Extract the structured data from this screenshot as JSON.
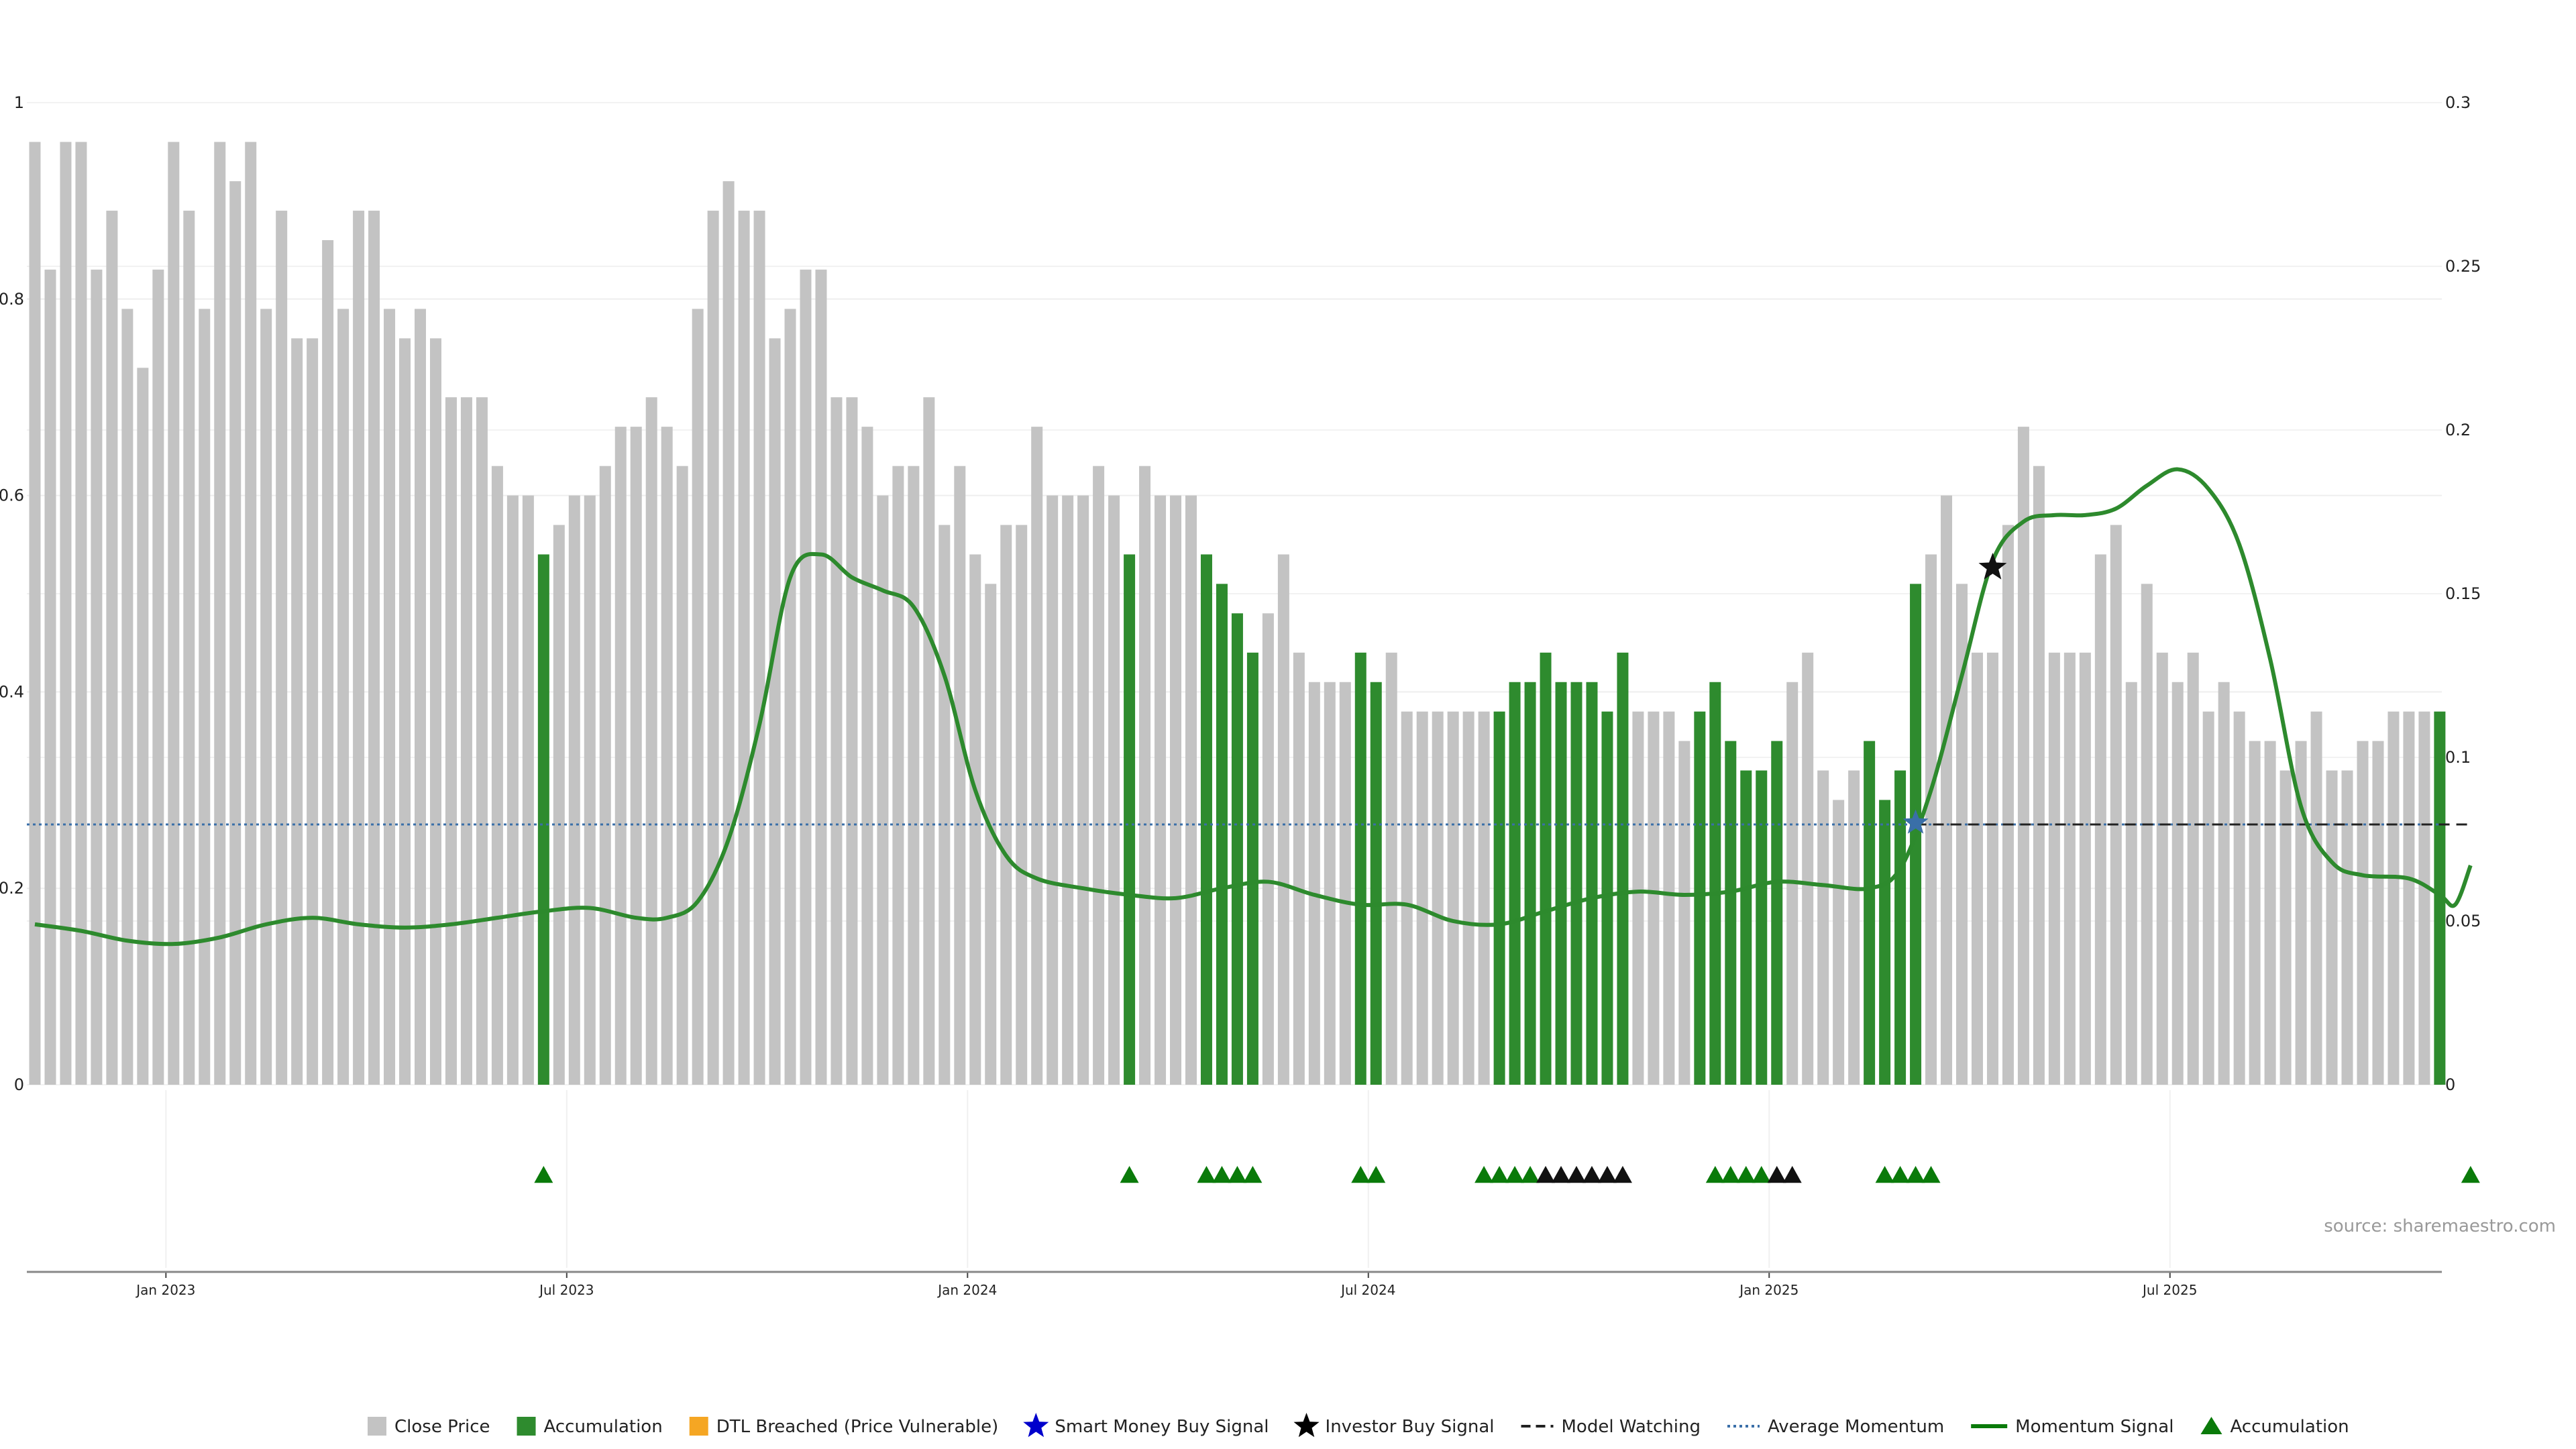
{
  "chart_data": {
    "type": "bar",
    "left_axis": {
      "ylim": [
        0,
        1
      ],
      "ticks": [
        "0",
        "0.2",
        "0.4",
        "0.6",
        "0.8",
        "1"
      ]
    },
    "right_axis": {
      "ylim": [
        0,
        0.3
      ],
      "ticks": [
        "0",
        "0.05",
        "0.1",
        "0.15",
        "0.2",
        "0.25",
        "0.3"
      ]
    },
    "x_tick_labels": [
      "Jan 2023",
      "Jul 2023",
      "Jan 2024",
      "Jul 2024",
      "Jan 2025",
      "Jul 2025"
    ],
    "grid": true,
    "source": "source: sharemaestro.com",
    "legend": {
      "position": "bottom-center",
      "items": [
        {
          "label": "Close Price",
          "marker": "square",
          "color": "#c3c3c3"
        },
        {
          "label": "Accumulation",
          "marker": "square",
          "color": "#2e8b2e"
        },
        {
          "label": "DTL Breached (Price Vulnerable)",
          "marker": "square",
          "color": "#f5a623"
        },
        {
          "label": "Smart Money Buy Signal",
          "marker": "star",
          "color": "#0000cc"
        },
        {
          "label": "Investor Buy Signal",
          "marker": "star",
          "color": "#000000"
        },
        {
          "label": "Model Watching",
          "marker": "dash",
          "color": "#222222"
        },
        {
          "label": "Average Momentum",
          "marker": "dotted",
          "color": "#3a6fa8"
        },
        {
          "label": "Momentum Signal",
          "marker": "line",
          "color": "#0a7a0a"
        },
        {
          "label": "Accumulation",
          "marker": "triangle",
          "color": "#0a7a0a"
        }
      ]
    },
    "colors": {
      "close_price": "#c3c3c3",
      "accumulation": "#2e8b2e",
      "momentum": "#2d8a2d",
      "momentum_recent": "#0a7a0a",
      "average_momentum": "#3a6fa8",
      "model_watching": "#222222"
    },
    "bars": {
      "values": [
        0.96,
        0.83,
        0.96,
        0.96,
        0.83,
        0.89,
        0.79,
        0.73,
        0.83,
        0.96,
        0.89,
        0.79,
        0.96,
        0.92,
        0.96,
        0.79,
        0.89,
        0.76,
        0.76,
        0.86,
        0.79,
        0.89,
        0.89,
        0.79,
        0.76,
        0.79,
        0.76,
        0.7,
        0.7,
        0.7,
        0.63,
        0.6,
        0.6,
        0.54,
        0.57,
        0.6,
        0.6,
        0.63,
        0.67,
        0.67,
        0.7,
        0.67,
        0.63,
        0.79,
        0.89,
        0.92,
        0.89,
        0.89,
        0.76,
        0.79,
        0.83,
        0.83,
        0.7,
        0.7,
        0.67,
        0.6,
        0.63,
        0.63,
        0.7,
        0.57,
        0.63,
        0.54,
        0.51,
        0.57,
        0.57,
        0.67,
        0.6,
        0.6,
        0.6,
        0.63,
        0.6,
        0.54,
        0.63,
        0.6,
        0.6,
        0.6,
        0.54,
        0.51,
        0.48,
        0.44,
        0.48,
        0.54,
        0.44,
        0.41,
        0.41,
        0.41,
        0.44,
        0.41,
        0.44,
        0.38,
        0.38,
        0.38,
        0.38,
        0.38,
        0.38,
        0.38,
        0.41,
        0.41,
        0.44,
        0.41,
        0.41,
        0.41,
        0.38,
        0.44,
        0.38,
        0.38,
        0.38,
        0.35,
        0.38,
        0.41,
        0.35,
        0.32,
        0.32,
        0.35,
        0.41,
        0.44,
        0.32,
        0.29,
        0.32,
        0.35,
        0.29,
        0.32,
        0.51,
        0.54,
        0.6,
        0.51,
        0.44,
        0.44,
        0.57,
        0.67,
        0.63,
        0.44,
        0.44,
        0.44,
        0.54,
        0.57,
        0.41,
        0.51,
        0.44,
        0.41,
        0.44,
        0.38,
        0.41,
        0.38,
        0.35,
        0.35,
        0.32,
        0.35,
        0.38,
        0.32,
        0.32,
        0.35,
        0.35,
        0.38,
        0.38,
        0.38,
        0.38
      ],
      "accumulation_index": [
        33,
        71,
        76,
        77,
        78,
        79,
        86,
        87,
        95,
        96,
        97,
        98,
        99,
        100,
        101,
        102,
        103,
        108,
        109,
        110,
        111,
        112,
        113,
        119,
        120,
        121,
        122,
        156
      ]
    },
    "momentum_signal": [
      [
        0,
        0.049
      ],
      [
        3,
        0.047
      ],
      [
        6,
        0.044
      ],
      [
        9,
        0.043
      ],
      [
        12,
        0.045
      ],
      [
        15,
        0.049
      ],
      [
        18,
        0.051
      ],
      [
        21,
        0.049
      ],
      [
        24,
        0.048
      ],
      [
        27,
        0.049
      ],
      [
        30,
        0.051
      ],
      [
        33,
        0.053
      ],
      [
        36,
        0.054
      ],
      [
        39,
        0.051
      ],
      [
        41,
        0.051
      ],
      [
        43,
        0.056
      ],
      [
        45,
        0.075
      ],
      [
        47,
        0.11
      ],
      [
        49,
        0.155
      ],
      [
        51,
        0.162
      ],
      [
        53,
        0.155
      ],
      [
        55,
        0.151
      ],
      [
        57,
        0.146
      ],
      [
        59,
        0.125
      ],
      [
        61,
        0.09
      ],
      [
        63,
        0.07
      ],
      [
        65,
        0.063
      ],
      [
        68,
        0.06
      ],
      [
        71,
        0.058
      ],
      [
        74,
        0.057
      ],
      [
        77,
        0.06
      ],
      [
        80,
        0.062
      ],
      [
        83,
        0.058
      ],
      [
        86,
        0.055
      ],
      [
        89,
        0.055
      ],
      [
        92,
        0.05
      ],
      [
        95,
        0.049
      ],
      [
        98,
        0.053
      ],
      [
        101,
        0.057
      ],
      [
        104,
        0.059
      ],
      [
        107,
        0.058
      ],
      [
        110,
        0.059
      ],
      [
        113,
        0.062
      ],
      [
        116,
        0.061
      ],
      [
        119,
        0.06
      ],
      [
        121,
        0.066
      ],
      [
        123,
        0.09
      ],
      [
        125,
        0.125
      ],
      [
        127,
        0.16
      ],
      [
        129,
        0.172
      ],
      [
        131,
        0.174
      ],
      [
        133,
        0.174
      ],
      [
        135,
        0.176
      ],
      [
        137,
        0.183
      ],
      [
        139,
        0.188
      ],
      [
        141,
        0.182
      ],
      [
        143,
        0.165
      ],
      [
        145,
        0.13
      ],
      [
        147,
        0.085
      ],
      [
        149,
        0.068
      ],
      [
        151,
        0.064
      ],
      [
        154,
        0.063
      ],
      [
        156,
        0.058
      ],
      [
        157,
        0.055
      ],
      [
        158,
        0.067
      ]
    ],
    "average_momentum": 0.0795,
    "model_watching": {
      "start_index": 122,
      "end_index": 158,
      "value": 0.0795
    },
    "investor_buy_signal": {
      "index": 127,
      "value": 0.158
    },
    "smart_money_buy_signal": {
      "index": 122,
      "value": 0.08
    },
    "accumulation_markers": [
      33,
      71,
      76,
      77,
      78,
      79,
      86,
      87,
      94,
      95,
      96,
      97,
      109,
      110,
      111,
      112,
      120,
      121,
      122,
      123,
      158
    ],
    "investor_markers": [
      98,
      99,
      100,
      101,
      102,
      103,
      113,
      114
    ]
  }
}
